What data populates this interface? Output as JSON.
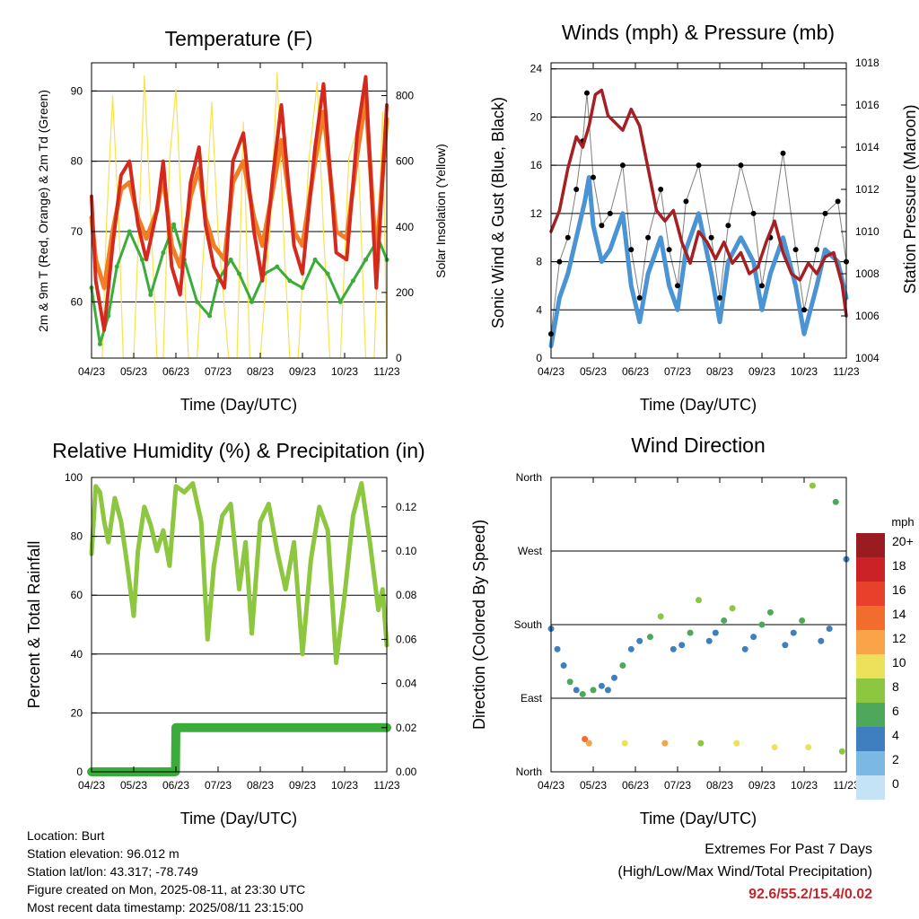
{
  "colors": {
    "temp_2m": "#d42a1e",
    "temp_9m": "#f07e26",
    "dewpoint": "#3aac3a",
    "solar": "#f9e24c",
    "wind": "#4a94d4",
    "gust": "#000000",
    "pressure": "#a51f23",
    "rh": "#8dc63f",
    "precip": "#3aac3a",
    "extremes": "#c0282d"
  },
  "chart_data": [
    {
      "id": "temperature",
      "type": "line",
      "title": "Temperature (F)",
      "xlabel": "Time (Day/UTC)",
      "ylabel": "2m & 9m T (Red, Orange) & 2m Td (Green)",
      "ylabel_right": "Solar Insolation (Yellow)",
      "x_ticks": [
        "04/23",
        "05/23",
        "06/23",
        "07/23",
        "08/23",
        "09/23",
        "10/23",
        "11/23"
      ],
      "xlim": [
        0,
        7
      ],
      "ylim": [
        52,
        94
      ],
      "y_ticks": [
        60,
        70,
        80,
        90
      ],
      "ylim_right": [
        0,
        900
      ],
      "y_ticks_right": [
        0,
        200,
        400,
        600,
        800
      ],
      "grid": true,
      "series": [
        {
          "key": "temp_2m",
          "x": [
            0,
            0.1,
            0.3,
            0.5,
            0.7,
            0.9,
            1.1,
            1.3,
            1.55,
            1.7,
            1.9,
            2.1,
            2.35,
            2.55,
            2.7,
            2.9,
            3.15,
            3.35,
            3.6,
            3.85,
            4.05,
            4.3,
            4.5,
            4.8,
            5.0,
            5.3,
            5.5,
            5.8,
            6.05,
            6.3,
            6.5,
            6.75,
            7.0
          ],
          "values": [
            75,
            63,
            56,
            68,
            78,
            80,
            71,
            66,
            73,
            80,
            65,
            61,
            77,
            82,
            71,
            65,
            62,
            80,
            84,
            70,
            63,
            78,
            88,
            68,
            64,
            82,
            91,
            67,
            66,
            84,
            92,
            62,
            88
          ]
        },
        {
          "key": "temp_9m",
          "x": [
            0,
            0.1,
            0.3,
            0.5,
            0.7,
            0.9,
            1.1,
            1.3,
            1.55,
            1.7,
            1.9,
            2.1,
            2.35,
            2.55,
            2.7,
            2.9,
            3.15,
            3.35,
            3.6,
            3.85,
            4.05,
            4.3,
            4.5,
            4.8,
            5.0,
            5.3,
            5.5,
            5.8,
            6.05,
            6.3,
            6.5,
            6.75,
            7.0
          ],
          "values": [
            72,
            66,
            62,
            70,
            76,
            77,
            72,
            69,
            73,
            78,
            68,
            65,
            75,
            79,
            72,
            68,
            66,
            77,
            80,
            72,
            68,
            76,
            83,
            70,
            68,
            80,
            87,
            70,
            69,
            81,
            89,
            66,
            86
          ]
        },
        {
          "key": "dewpoint",
          "x": [
            0,
            0.2,
            0.4,
            0.6,
            0.9,
            1.2,
            1.4,
            1.7,
            1.95,
            2.2,
            2.5,
            2.8,
            3.0,
            3.3,
            3.5,
            3.8,
            4.1,
            4.4,
            4.7,
            5.0,
            5.3,
            5.6,
            5.9,
            6.2,
            6.5,
            6.8,
            7.0
          ],
          "values": [
            62,
            54,
            58,
            65,
            70,
            66,
            61,
            67,
            71,
            66,
            60,
            58,
            63,
            66,
            64,
            60,
            64,
            65,
            63,
            62,
            66,
            64,
            60,
            63,
            66,
            69,
            66
          ]
        },
        {
          "key": "solar",
          "x": [
            0,
            0.25,
            0.35,
            0.5,
            0.65,
            0.75,
            1.0,
            1.15,
            1.25,
            1.4,
            1.55,
            1.7,
            1.85,
            2.0,
            2.15,
            2.3,
            2.5,
            2.7,
            2.85,
            3.0,
            3.25,
            3.45,
            3.6,
            3.75,
            4.0,
            4.25,
            4.4,
            4.55,
            4.7,
            4.9,
            5.15,
            5.35,
            5.5,
            5.65,
            5.9,
            6.1,
            6.3,
            6.5,
            6.7,
            6.9,
            7.0
          ],
          "values": [
            0,
            0,
            400,
            800,
            400,
            0,
            0,
            500,
            860,
            450,
            0,
            0,
            600,
            820,
            400,
            0,
            0,
            420,
            780,
            380,
            0,
            0,
            720,
            0,
            0,
            430,
            870,
            380,
            0,
            0,
            600,
            840,
            380,
            0,
            0,
            610,
            700,
            0,
            0,
            750,
            0
          ]
        }
      ]
    },
    {
      "id": "winds",
      "type": "line",
      "title": "Winds (mph) & Pressure (mb)",
      "xlabel": "Time (Day/UTC)",
      "ylabel": "Sonic Wind & Gust (Blue, Black)",
      "ylabel_right": "Station Pressure (Maroon)",
      "x_ticks": [
        "04/23",
        "05/23",
        "06/23",
        "07/23",
        "08/23",
        "09/23",
        "10/23",
        "11/23"
      ],
      "xlim": [
        0,
        7
      ],
      "ylim": [
        0,
        24.5
      ],
      "y_ticks": [
        0,
        4,
        8,
        12,
        16,
        20,
        24
      ],
      "ylim_right": [
        1004,
        1018
      ],
      "y_ticks_right": [
        1004,
        1006,
        1008,
        1010,
        1012,
        1014,
        1016,
        1018
      ],
      "grid": true,
      "series": [
        {
          "key": "wind",
          "x": [
            0,
            0.2,
            0.4,
            0.6,
            0.8,
            0.9,
            1.0,
            1.2,
            1.4,
            1.7,
            1.9,
            2.1,
            2.3,
            2.6,
            2.8,
            3.0,
            3.2,
            3.5,
            3.8,
            4.0,
            4.2,
            4.5,
            4.8,
            5.0,
            5.2,
            5.5,
            5.8,
            6.0,
            6.3,
            6.5,
            6.8,
            7.0
          ],
          "values": [
            1,
            5,
            7,
            10,
            13,
            15,
            11,
            8,
            9,
            12,
            6,
            3,
            7,
            10,
            6,
            4,
            9,
            12,
            7,
            3,
            8,
            10,
            8,
            4,
            7,
            10,
            6,
            2,
            6,
            9,
            8,
            5
          ]
        },
        {
          "key": "gust",
          "x": [
            0,
            0.2,
            0.4,
            0.6,
            0.75,
            0.85,
            1.0,
            1.2,
            1.4,
            1.7,
            1.9,
            2.1,
            2.3,
            2.6,
            2.8,
            3.0,
            3.2,
            3.5,
            3.8,
            4.0,
            4.2,
            4.5,
            4.8,
            5.0,
            5.2,
            5.5,
            5.8,
            6.0,
            6.3,
            6.5,
            6.8,
            7.0
          ],
          "values": [
            2,
            8,
            10,
            14,
            18,
            22,
            15,
            11,
            12,
            16,
            9,
            5,
            10,
            14,
            9,
            6,
            13,
            16,
            10,
            5,
            11,
            16,
            12,
            6,
            10,
            17,
            9,
            4,
            9,
            12,
            13,
            8
          ]
        },
        {
          "key": "pressure",
          "x": [
            0,
            0.2,
            0.4,
            0.6,
            0.75,
            0.9,
            1.05,
            1.2,
            1.35,
            1.5,
            1.7,
            1.9,
            2.1,
            2.3,
            2.5,
            2.7,
            2.9,
            3.1,
            3.3,
            3.5,
            3.7,
            3.9,
            4.1,
            4.3,
            4.5,
            4.7,
            4.9,
            5.1,
            5.3,
            5.5,
            5.7,
            5.9,
            6.1,
            6.3,
            6.5,
            6.7,
            6.9,
            7.0
          ],
          "values": [
            1010,
            1011,
            1013,
            1014.5,
            1014,
            1015,
            1016.5,
            1016.7,
            1015.5,
            1015.2,
            1014.8,
            1015.8,
            1015,
            1013,
            1011,
            1010.5,
            1011,
            1009.5,
            1008.5,
            1010,
            1009.5,
            1008.7,
            1009.5,
            1008.5,
            1009,
            1008,
            1008.3,
            1009.5,
            1010.5,
            1009,
            1008,
            1007.7,
            1008.5,
            1008,
            1008.8,
            1009,
            1007.5,
            1006
          ]
        }
      ]
    },
    {
      "id": "humidity",
      "type": "line",
      "title": "Relative Humidity (%) & Precipitation (in)",
      "xlabel": "Time (Day/UTC)",
      "ylabel": "Percent & Total Rainfall",
      "x_ticks": [
        "04/23",
        "05/23",
        "06/23",
        "07/23",
        "08/23",
        "09/23",
        "10/23",
        "11/23"
      ],
      "xlim": [
        0,
        7
      ],
      "ylim": [
        0,
        100
      ],
      "y_ticks": [
        0,
        20,
        40,
        60,
        80,
        100
      ],
      "ylim_right": [
        0,
        0.13333
      ],
      "y_ticks_right": [
        "0.00",
        "0.02",
        "0.04",
        "0.06",
        "0.08",
        "0.10",
        "0.12"
      ],
      "grid": true,
      "series": [
        {
          "key": "rh",
          "x": [
            0,
            0.1,
            0.2,
            0.3,
            0.4,
            0.55,
            0.7,
            0.85,
            1.0,
            1.1,
            1.25,
            1.4,
            1.55,
            1.7,
            1.85,
            2.0,
            2.2,
            2.4,
            2.6,
            2.75,
            2.9,
            3.1,
            3.3,
            3.5,
            3.65,
            3.8,
            4.0,
            4.2,
            4.4,
            4.6,
            4.8,
            5.0,
            5.2,
            5.4,
            5.6,
            5.8,
            6.0,
            6.2,
            6.4,
            6.6,
            6.8,
            6.9,
            7.0
          ],
          "values": [
            74,
            97,
            95,
            85,
            78,
            93,
            85,
            70,
            53,
            75,
            90,
            84,
            75,
            82,
            70,
            97,
            95,
            98,
            85,
            45,
            70,
            87,
            91,
            62,
            78,
            47,
            85,
            91,
            75,
            62,
            78,
            40,
            72,
            90,
            82,
            37,
            60,
            87,
            98,
            78,
            55,
            62,
            43
          ]
        },
        {
          "key": "precip",
          "x": [
            0,
            1.99,
            2.0,
            7.0
          ],
          "values": [
            0,
            0,
            0.02,
            0.02
          ]
        }
      ]
    },
    {
      "id": "direction",
      "type": "scatter",
      "title": "Wind Direction",
      "xlabel": "Time (Day/UTC)",
      "ylabel": "Direction (Colored By Speed)",
      "x_ticks": [
        "04/23",
        "05/23",
        "06/23",
        "07/23",
        "08/23",
        "09/23",
        "10/23",
        "11/23"
      ],
      "xlim": [
        0,
        7
      ],
      "ylim": [
        0,
        360
      ],
      "y_tick_values": [
        0,
        90,
        180,
        270,
        360
      ],
      "y_tick_labels": [
        "North",
        "East",
        "South",
        "West",
        "North"
      ],
      "grid": true,
      "legend_title": "mph",
      "legend_labels": [
        "20+",
        "18",
        "16",
        "14",
        "12",
        "10",
        "8",
        "6",
        "4",
        "2",
        "0"
      ],
      "legend_colors": [
        "#9b1c20",
        "#cc2127",
        "#e8412b",
        "#f26c2e",
        "#f9a449",
        "#ede15b",
        "#8dc63f",
        "#4ea85b",
        "#3f7fbf",
        "#7bb8e3",
        "#c4e4f6"
      ],
      "legend_placement": "right",
      "clusters": [
        {
          "x": 0.0,
          "dir": 175,
          "speed": 3
        },
        {
          "x": 0.15,
          "dir": 150,
          "speed": 4
        },
        {
          "x": 0.3,
          "dir": 130,
          "speed": 3
        },
        {
          "x": 0.45,
          "dir": 110,
          "speed": 5
        },
        {
          "x": 0.6,
          "dir": 100,
          "speed": 4
        },
        {
          "x": 0.75,
          "dir": 95,
          "speed": 6
        },
        {
          "x": 0.8,
          "dir": 40,
          "speed": 14
        },
        {
          "x": 0.9,
          "dir": 35,
          "speed": 12
        },
        {
          "x": 1.0,
          "dir": 100,
          "speed": 5
        },
        {
          "x": 1.2,
          "dir": 105,
          "speed": 4
        },
        {
          "x": 1.35,
          "dir": 100,
          "speed": 3
        },
        {
          "x": 1.5,
          "dir": 115,
          "speed": 4
        },
        {
          "x": 1.7,
          "dir": 130,
          "speed": 6
        },
        {
          "x": 1.75,
          "dir": 35,
          "speed": 9
        },
        {
          "x": 1.9,
          "dir": 150,
          "speed": 3
        },
        {
          "x": 2.1,
          "dir": 160,
          "speed": 4
        },
        {
          "x": 2.35,
          "dir": 165,
          "speed": 5
        },
        {
          "x": 2.6,
          "dir": 190,
          "speed": 7
        },
        {
          "x": 2.7,
          "dir": 35,
          "speed": 11
        },
        {
          "x": 2.9,
          "dir": 150,
          "speed": 3
        },
        {
          "x": 3.1,
          "dir": 155,
          "speed": 4
        },
        {
          "x": 3.3,
          "dir": 170,
          "speed": 5
        },
        {
          "x": 3.5,
          "dir": 210,
          "speed": 7
        },
        {
          "x": 3.55,
          "dir": 35,
          "speed": 8
        },
        {
          "x": 3.75,
          "dir": 160,
          "speed": 3
        },
        {
          "x": 3.9,
          "dir": 170,
          "speed": 4
        },
        {
          "x": 4.1,
          "dir": 185,
          "speed": 6
        },
        {
          "x": 4.3,
          "dir": 200,
          "speed": 7
        },
        {
          "x": 4.4,
          "dir": 35,
          "speed": 9
        },
        {
          "x": 4.6,
          "dir": 150,
          "speed": 3
        },
        {
          "x": 4.8,
          "dir": 165,
          "speed": 4
        },
        {
          "x": 5.0,
          "dir": 180,
          "speed": 5
        },
        {
          "x": 5.2,
          "dir": 195,
          "speed": 6
        },
        {
          "x": 5.3,
          "dir": 30,
          "speed": 10
        },
        {
          "x": 5.55,
          "dir": 155,
          "speed": 3
        },
        {
          "x": 5.75,
          "dir": 170,
          "speed": 4
        },
        {
          "x": 5.95,
          "dir": 185,
          "speed": 6
        },
        {
          "x": 6.1,
          "dir": 30,
          "speed": 9
        },
        {
          "x": 6.2,
          "dir": 350,
          "speed": 7
        },
        {
          "x": 6.4,
          "dir": 160,
          "speed": 3
        },
        {
          "x": 6.6,
          "dir": 175,
          "speed": 4
        },
        {
          "x": 6.75,
          "dir": 330,
          "speed": 6
        },
        {
          "x": 6.9,
          "dir": 25,
          "speed": 8
        },
        {
          "x": 7.0,
          "dir": 260,
          "speed": 3
        }
      ]
    }
  ],
  "info": {
    "location": "Location: Burt",
    "elevation": "Station elevation: 96.012 m",
    "latlon": "Station lat/lon: 43.317; -78.749",
    "created": "Figure created on Mon, 2025-08-11, at 23:30 UTC",
    "timestamp": "Most recent data timestamp: 2025/08/11 23:15:00"
  },
  "extremes": {
    "line1": "Extremes For Past 7 Days",
    "line2": "(High/Low/Max Wind/Total Precipitation)",
    "values": "92.6/55.2/15.4/0.02"
  }
}
